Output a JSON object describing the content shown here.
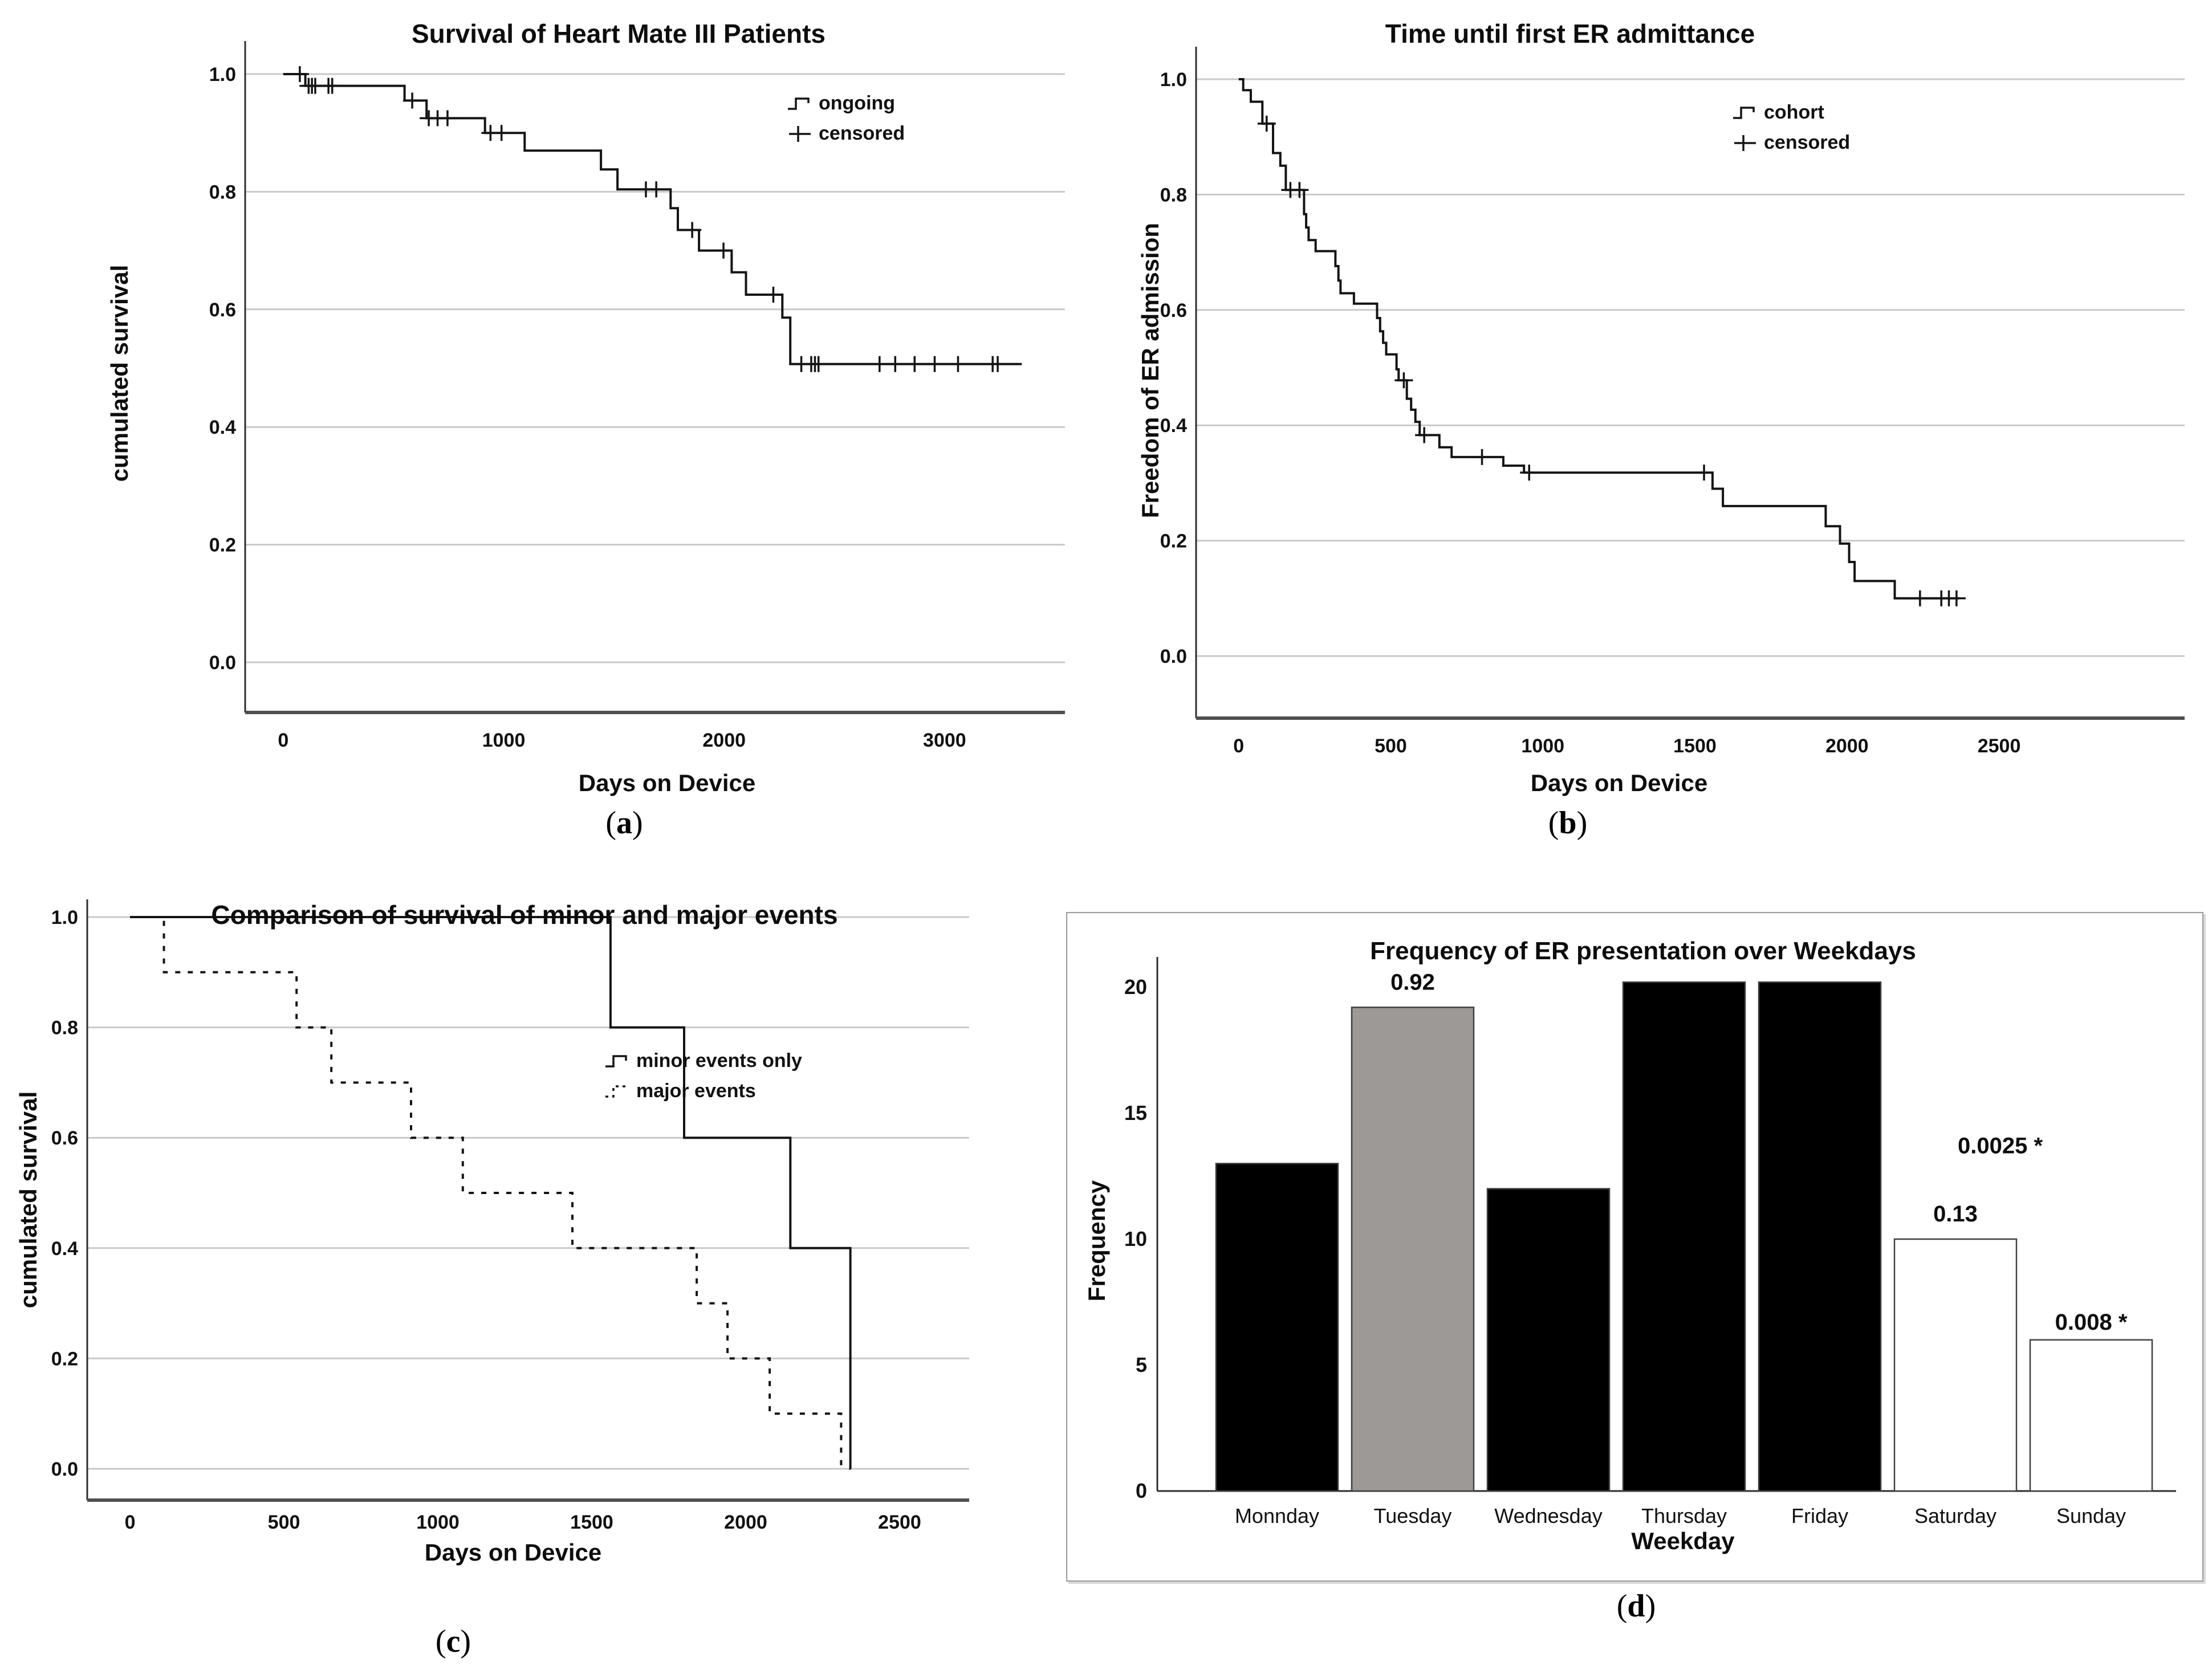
{
  "page": {
    "background": "#ffffff",
    "text_color": "#111111",
    "grid_color": "#c9c9c9",
    "axis_color": "#2e2e2e",
    "frame_color": "#4f4f4f",
    "curve_color": "#141414"
  },
  "chart_data": [
    {
      "id": "a",
      "type": "line",
      "subtype": "kaplan_meier_step",
      "title": "Survival of Heart Mate III Patients",
      "xlabel": "Days on Device",
      "ylabel": "cumulated survival",
      "caption": {
        "open": "(",
        "letter": "a",
        "close": ")"
      },
      "xlim": [
        -173,
        3546
      ],
      "ylim": [
        0,
        1.05
      ],
      "x_ticks": [
        0,
        1000,
        2000,
        3000
      ],
      "y_ticks": [
        "1.0",
        "0.8",
        "0.6",
        "0.4",
        "0.2",
        "0.0"
      ],
      "grid": "horizontal",
      "legend_position": "upper-right-inside",
      "legend": [
        {
          "label": "ongoing",
          "glyph": "step-solid"
        },
        {
          "label": "censored",
          "glyph": "plus"
        }
      ],
      "series": [
        {
          "name": "ongoing",
          "style": "solid",
          "steps": [
            [
              0,
              1
            ],
            [
              100,
              0.98
            ],
            [
              550,
              0.955
            ],
            [
              650,
              0.925
            ],
            [
              915,
              0.9
            ],
            [
              1095,
              0.87
            ],
            [
              1441,
              0.838
            ],
            [
              1516,
              0.804
            ],
            [
              1757,
              0.772
            ],
            [
              1790,
              0.735
            ],
            [
              1886,
              0.7
            ],
            [
              2034,
              0.663
            ],
            [
              2099,
              0.625
            ],
            [
              2264,
              0.586
            ],
            [
              2300,
              0.507
            ]
          ],
          "end_time": 3350,
          "censored": [
            [
              75,
              1
            ],
            [
              115,
              0.98
            ],
            [
              130,
              0.98
            ],
            [
              145,
              0.98
            ],
            [
              205,
              0.98
            ],
            [
              222,
              0.98
            ],
            [
              585,
              0.955
            ],
            [
              660,
              0.925
            ],
            [
              700,
              0.925
            ],
            [
              745,
              0.925
            ],
            [
              940,
              0.9
            ],
            [
              990,
              0.9
            ],
            [
              1645,
              0.804
            ],
            [
              1692,
              0.804
            ],
            [
              1855,
              0.735
            ],
            [
              1997,
              0.7
            ],
            [
              2223,
              0.625
            ],
            [
              2350,
              0.507
            ],
            [
              2395,
              0.507
            ],
            [
              2412,
              0.507
            ],
            [
              2428,
              0.507
            ],
            [
              2705,
              0.507
            ],
            [
              2776,
              0.507
            ],
            [
              2864,
              0.507
            ],
            [
              2955,
              0.507
            ],
            [
              3061,
              0.507
            ],
            [
              3218,
              0.507
            ],
            [
              3241,
              0.507
            ]
          ]
        }
      ]
    },
    {
      "id": "b",
      "type": "line",
      "subtype": "kaplan_meier_step",
      "title": "Time until first ER admittance",
      "xlabel": "Days on Device",
      "ylabel": "Freedom of ER admission",
      "caption": {
        "open": "(",
        "letter": "b",
        "close": ")"
      },
      "xlim": [
        -140,
        3110
      ],
      "ylim": [
        0,
        1.05
      ],
      "x_ticks": [
        0,
        500,
        1000,
        1500,
        2000,
        2500
      ],
      "y_ticks": [
        "1.0",
        "0.8",
        "0.6",
        "0.4",
        "0.2",
        "0.0"
      ],
      "grid": "horizontal",
      "legend_position": "upper-right-inside",
      "legend": [
        {
          "label": "cohort",
          "glyph": "step-solid"
        },
        {
          "label": "censored",
          "glyph": "plus"
        }
      ],
      "series": [
        {
          "name": "cohort",
          "style": "solid",
          "steps": [
            [
              0,
              1
            ],
            [
              15,
              0.981
            ],
            [
              40,
              0.961
            ],
            [
              78,
              0.923
            ],
            [
              113,
              0.872
            ],
            [
              137,
              0.85
            ],
            [
              155,
              0.808
            ],
            [
              215,
              0.766
            ],
            [
              222,
              0.743
            ],
            [
              230,
              0.721
            ],
            [
              253,
              0.702
            ],
            [
              318,
              0.676
            ],
            [
              328,
              0.651
            ],
            [
              335,
              0.629
            ],
            [
              379,
              0.611
            ],
            [
              455,
              0.586
            ],
            [
              465,
              0.563
            ],
            [
              475,
              0.543
            ],
            [
              485,
              0.523
            ],
            [
              519,
              0.497
            ],
            [
              526,
              0.478
            ],
            [
              553,
              0.446
            ],
            [
              567,
              0.427
            ],
            [
              581,
              0.406
            ],
            [
              595,
              0.383
            ],
            [
              660,
              0.362
            ],
            [
              700,
              0.345
            ],
            [
              870,
              0.33
            ],
            [
              938,
              0.318
            ],
            [
              1558,
              0.29
            ],
            [
              1592,
              0.26
            ],
            [
              1930,
              0.225
            ],
            [
              1977,
              0.195
            ],
            [
              2007,
              0.163
            ],
            [
              2025,
              0.13
            ],
            [
              2157,
              0.1
            ]
          ],
          "end_time": 2370,
          "censored": [
            [
              92,
              0.923
            ],
            [
              170,
              0.808
            ],
            [
              200,
              0.808
            ],
            [
              543,
              0.478
            ],
            [
              610,
              0.383
            ],
            [
              800,
              0.345
            ],
            [
              955,
              0.318
            ],
            [
              1530,
              0.318
            ],
            [
              2240,
              0.1
            ],
            [
              2310,
              0.1
            ],
            [
              2335,
              0.1
            ],
            [
              2360,
              0.1
            ]
          ]
        }
      ]
    },
    {
      "id": "c",
      "type": "line",
      "subtype": "kaplan_meier_step",
      "title": "Comparison of survival of minor and major events",
      "xlabel": "Days on Device",
      "ylabel": "cumulated survival",
      "caption": {
        "open": "(",
        "letter": "c",
        "close": ")"
      },
      "xlim": [
        -139,
        2726
      ],
      "ylim": [
        0,
        1.05
      ],
      "x_ticks": [
        0,
        500,
        1000,
        1500,
        2000,
        2500
      ],
      "y_ticks": [
        "1.0",
        "0.8",
        "0.6",
        "0.4",
        "0.2",
        "0.0"
      ],
      "grid": "horizontal",
      "legend_position": "upper-right-inside",
      "legend": [
        {
          "label": "minor events only",
          "glyph": "step-solid"
        },
        {
          "label": "major events",
          "glyph": "step-dashed"
        }
      ],
      "series": [
        {
          "name": "minor events only",
          "style": "solid",
          "steps": [
            [
              0,
              1
            ],
            [
              1561,
              0.8
            ],
            [
              1800,
              0.6
            ],
            [
              2145,
              0.4
            ],
            [
              2340,
              0
            ]
          ],
          "end_time": 2341,
          "censored": []
        },
        {
          "name": "major events",
          "style": "dashed",
          "steps": [
            [
              0,
              1
            ],
            [
              110,
              0.9
            ],
            [
              541,
              0.8
            ],
            [
              654,
              0.7
            ],
            [
              913,
              0.6
            ],
            [
              1081,
              0.5
            ],
            [
              1437,
              0.4
            ],
            [
              1841,
              0.3
            ],
            [
              1941,
              0.2
            ],
            [
              2078,
              0.1
            ],
            [
              2310,
              0
            ]
          ],
          "end_time": 2311,
          "censored": []
        }
      ]
    },
    {
      "id": "d",
      "type": "bar",
      "title": "Frequency of ER presentation over Weekdays",
      "xlabel": "Weekday",
      "ylabel": "Frequency",
      "caption": {
        "open": "(",
        "letter": "d",
        "close": ")"
      },
      "categories": [
        "Monnday",
        "Tuesday",
        "Wednesday",
        "Thursday",
        "Friday",
        "Saturday",
        "Sunday"
      ],
      "values": [
        13,
        19.2,
        12,
        20.2,
        20.2,
        10,
        6
      ],
      "bar_colors": [
        "#000000",
        "#9c9996",
        "#000000",
        "#000000",
        "#000000",
        "#ffffff",
        "#ffffff"
      ],
      "bar_outline": "#404040",
      "ylim": [
        0,
        20.5
      ],
      "y_ticks": [
        "0",
        "5",
        "10",
        "15",
        "20"
      ],
      "grid": "none",
      "annotations": [
        {
          "text": "0.92",
          "cat": 1,
          "units": 19.9
        },
        {
          "text": "0.0025 *",
          "cat": 5.33,
          "units": 13.4
        },
        {
          "text": "0.13",
          "cat": 5,
          "units": 10.7
        },
        {
          "text": "0.008 *",
          "cat": 6,
          "units": 6.4
        }
      ]
    }
  ]
}
